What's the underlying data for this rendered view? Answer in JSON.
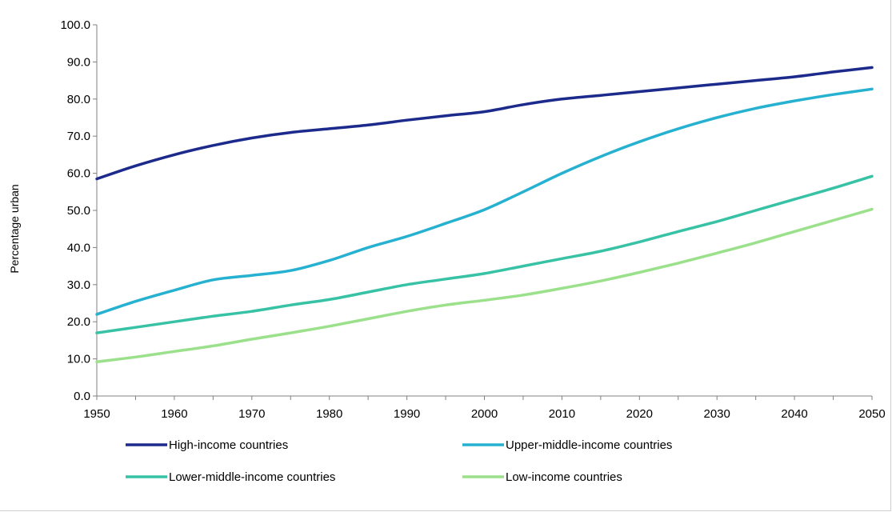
{
  "chart_data": {
    "type": "line",
    "title": "",
    "xlabel": "",
    "ylabel": "Percentage urban",
    "x": [
      1950,
      1955,
      1960,
      1965,
      1970,
      1975,
      1980,
      1985,
      1990,
      1995,
      2000,
      2005,
      2010,
      2015,
      2020,
      2025,
      2030,
      2035,
      2040,
      2045,
      2050
    ],
    "xticks": [
      "1950",
      "1960",
      "1970",
      "1980",
      "1990",
      "2000",
      "2010",
      "2020",
      "2030",
      "2040",
      "2050"
    ],
    "xtick_values": [
      1950,
      1960,
      1970,
      1980,
      1990,
      2000,
      2010,
      2020,
      2030,
      2040,
      2050
    ],
    "yticks": [
      "0.0",
      "10.0",
      "20.0",
      "30.0",
      "40.0",
      "50.0",
      "60.0",
      "70.0",
      "80.0",
      "90.0",
      "100.0"
    ],
    "ytick_values": [
      0,
      10,
      20,
      30,
      40,
      50,
      60,
      70,
      80,
      90,
      100
    ],
    "xlim": [
      1950,
      2050
    ],
    "ylim": [
      0,
      100
    ],
    "grid": false,
    "legend_position": "bottom",
    "series": [
      {
        "name": "High-income countries",
        "color": "#1c2a8c",
        "values": [
          58.5,
          62.0,
          65.0,
          67.5,
          69.5,
          71.0,
          72.0,
          73.0,
          74.3,
          75.5,
          76.6,
          78.5,
          80.0,
          81.0,
          82.0,
          83.0,
          84.0,
          85.0,
          86.0,
          87.3,
          88.5
        ]
      },
      {
        "name": "Upper-middle-income countries",
        "color": "#27b1d1",
        "values": [
          22.0,
          25.5,
          28.5,
          31.3,
          32.5,
          33.8,
          36.5,
          40.0,
          43.0,
          46.5,
          50.2,
          55.0,
          60.0,
          64.5,
          68.5,
          72.0,
          75.0,
          77.5,
          79.5,
          81.2,
          82.7
        ]
      },
      {
        "name": "Lower-middle-income countries",
        "color": "#38c2a5",
        "values": [
          17.0,
          18.5,
          20.0,
          21.5,
          22.8,
          24.5,
          26.0,
          28.0,
          30.0,
          31.5,
          33.0,
          35.0,
          37.0,
          39.0,
          41.5,
          44.3,
          47.0,
          50.0,
          53.0,
          56.0,
          59.2
        ]
      },
      {
        "name": "Low-income countries",
        "color": "#9be08a",
        "values": [
          9.2,
          10.5,
          12.0,
          13.5,
          15.3,
          17.0,
          18.8,
          20.8,
          22.8,
          24.5,
          25.8,
          27.2,
          29.0,
          31.0,
          33.3,
          35.8,
          38.5,
          41.3,
          44.3,
          47.3,
          50.3
        ]
      }
    ]
  }
}
